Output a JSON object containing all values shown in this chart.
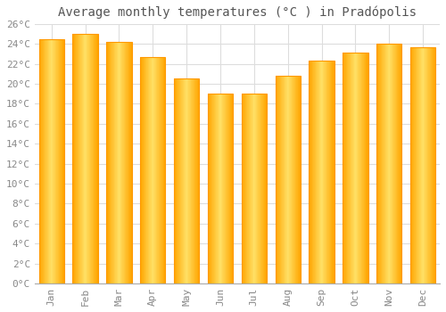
{
  "title": "Average monthly temperatures (°C ) in Pradópolis",
  "months": [
    "Jan",
    "Feb",
    "Mar",
    "Apr",
    "May",
    "Jun",
    "Jul",
    "Aug",
    "Sep",
    "Oct",
    "Nov",
    "Dec"
  ],
  "values": [
    24.5,
    25.0,
    24.2,
    22.7,
    20.5,
    19.0,
    19.0,
    20.8,
    22.3,
    23.1,
    24.0,
    23.7
  ],
  "bar_color_center": "#FFD966",
  "bar_color_edge": "#FFA500",
  "background_color": "#FFFFFF",
  "grid_color": "#DDDDDD",
  "ylim": [
    0,
    26
  ],
  "ytick_step": 2,
  "title_fontsize": 10,
  "tick_fontsize": 8,
  "tick_font": "monospace"
}
